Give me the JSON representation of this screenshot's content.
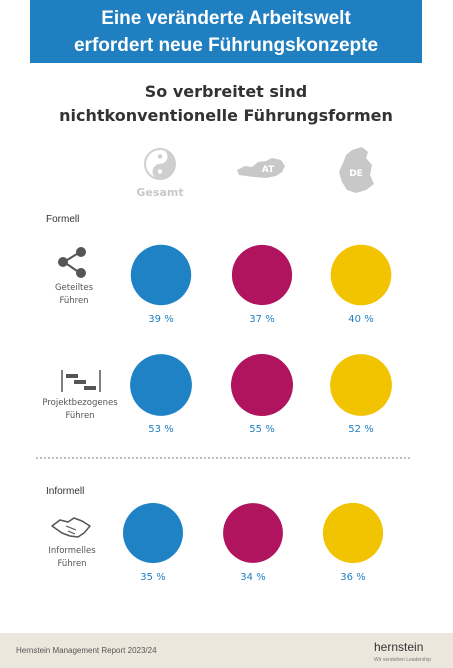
{
  "header": {
    "title_line1": "Eine veränderte Arbeitswelt",
    "title_line2": "erfordert neue Führungskonzepte",
    "color": "#1f7fc1"
  },
  "subtitle": {
    "line1": "So verbreitet sind",
    "line2": "nichtkonventionelle Führungsformen"
  },
  "columns": [
    {
      "label": "Gesamt",
      "icon": "yin-yang-icon",
      "color": "#1f82c4"
    },
    {
      "label": "AT",
      "icon": "austria-map-icon",
      "color": "#b0145f"
    },
    {
      "label": "DE",
      "icon": "germany-map-icon",
      "color": "#f2c300"
    }
  ],
  "sections": {
    "formell": "Formell",
    "informell": "Informell"
  },
  "chart_data": {
    "type": "bubble",
    "columns": [
      "Gesamt",
      "AT",
      "DE"
    ],
    "rows": [
      {
        "label": "Geteiltes Führen",
        "group": "Formell",
        "values": [
          39,
          37,
          40
        ]
      },
      {
        "label": "Projektbezogenes Führen",
        "group": "Formell",
        "values": [
          53,
          55,
          52
        ]
      },
      {
        "label": "Informelles Führen",
        "group": "Informell",
        "values": [
          35,
          34,
          36
        ]
      }
    ],
    "unit": "%"
  },
  "rows_display": [
    {
      "line1": "Geteiltes",
      "line2": "Führen",
      "icon": "share-icon",
      "values": [
        "39 %",
        "37 %",
        "40 %"
      ]
    },
    {
      "line1": "Projektbezogenes",
      "line2": "Führen",
      "icon": "gantt-icon",
      "values": [
        "53 %",
        "55 %",
        "52 %"
      ]
    },
    {
      "line1": "Informelles",
      "line2": "Führen",
      "icon": "handshake-icon",
      "values": [
        "35 %",
        "34 %",
        "36 %"
      ]
    }
  ],
  "footer": {
    "report": "Hernstein Management Report 2023/24",
    "brand": "hernstein",
    "tagline": "Wir verstehen Leadership"
  }
}
